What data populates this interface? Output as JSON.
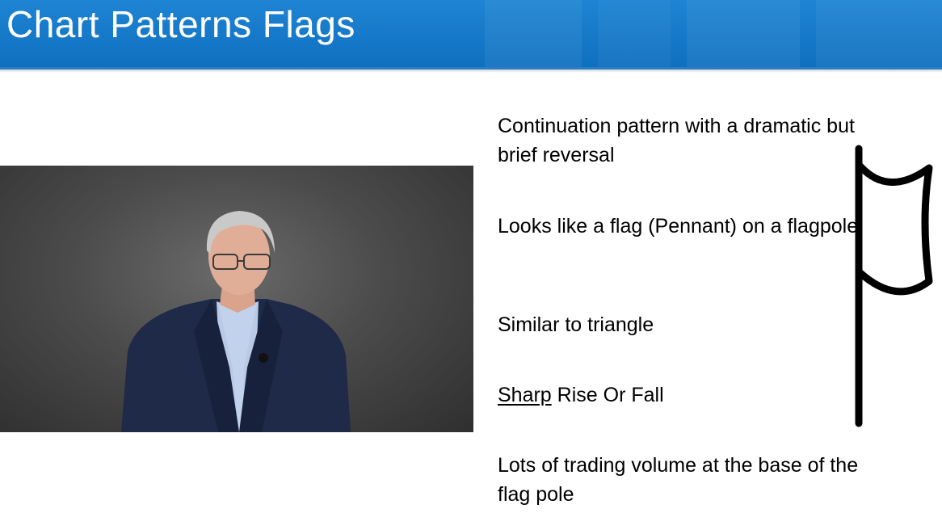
{
  "slide": {
    "title": "Chart Patterns Flags"
  },
  "bullets": [
    {
      "text": "Continuation pattern with a dramatic but brief reversal"
    },
    {
      "text": "Looks like a flag (Pennant) on a flagpole"
    },
    {
      "text": "Similar to triangle"
    },
    {
      "underlined": "Sharp",
      "rest": " Rise Or Fall"
    },
    {
      "text": "Lots of trading volume at the base of the flag pole"
    }
  ],
  "icons": {
    "flag": "flag-icon"
  },
  "colors": {
    "title_bar": "#1479c9",
    "title_text": "#ffffff",
    "body_text": "#000000"
  }
}
